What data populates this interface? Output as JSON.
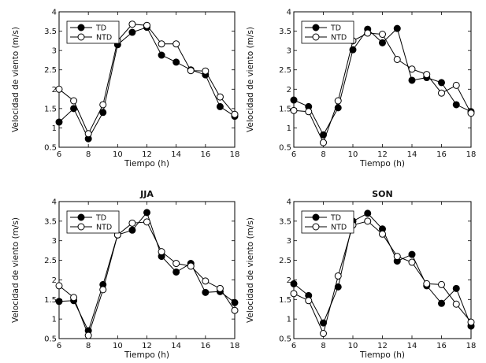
{
  "chart_data": [
    {
      "type": "line",
      "title": "",
      "xlabel": "Tiempo (h)",
      "ylabel": "Velocidad de viento (m/s)",
      "xlim": [
        6,
        18
      ],
      "ylim": [
        0.5,
        4
      ],
      "xticks": [
        6,
        8,
        10,
        12,
        14,
        16,
        18
      ],
      "yticks": [
        0.5,
        1,
        1.5,
        2,
        2.5,
        3,
        3.5,
        4
      ],
      "x": [
        6,
        7,
        8,
        9,
        10,
        11,
        12,
        13,
        14,
        15,
        16,
        17,
        18
      ],
      "series": [
        {
          "name": "TD",
          "marker": "filled",
          "values": [
            1.15,
            1.5,
            0.72,
            1.4,
            3.15,
            3.47,
            3.6,
            2.88,
            2.7,
            2.5,
            2.37,
            1.55,
            1.3
          ]
        },
        {
          "name": "NTD",
          "marker": "open",
          "values": [
            2.0,
            1.7,
            0.85,
            1.6,
            3.25,
            3.68,
            3.65,
            3.17,
            3.17,
            2.48,
            2.47,
            1.8,
            1.35
          ]
        }
      ]
    },
    {
      "type": "line",
      "title": "",
      "xlabel": "Tiempo (h)",
      "ylabel": "Velocidad de viento (m/s)",
      "xlim": [
        6,
        18
      ],
      "ylim": [
        0.5,
        4
      ],
      "xticks": [
        6,
        8,
        10,
        12,
        14,
        16,
        18
      ],
      "yticks": [
        0.5,
        1,
        1.5,
        2,
        2.5,
        3,
        3.5,
        4
      ],
      "x": [
        6,
        7,
        8,
        9,
        10,
        11,
        12,
        13,
        14,
        15,
        16,
        17,
        18
      ],
      "series": [
        {
          "name": "TD",
          "marker": "filled",
          "values": [
            1.72,
            1.55,
            0.82,
            1.52,
            3.02,
            3.55,
            3.2,
            3.57,
            2.23,
            2.3,
            2.17,
            1.6,
            1.42
          ]
        },
        {
          "name": "NTD",
          "marker": "open",
          "values": [
            1.45,
            1.42,
            0.62,
            1.7,
            3.25,
            3.45,
            3.42,
            2.77,
            2.52,
            2.38,
            1.9,
            2.1,
            1.38
          ]
        }
      ]
    },
    {
      "type": "line",
      "title": "JJA",
      "xlabel": "Tiempo (h)",
      "ylabel": "Velocidad de viento (m/s)",
      "xlim": [
        6,
        18
      ],
      "ylim": [
        0.5,
        4
      ],
      "xticks": [
        6,
        8,
        10,
        12,
        14,
        16,
        18
      ],
      "yticks": [
        0.5,
        1,
        1.5,
        2,
        2.5,
        3,
        3.5,
        4
      ],
      "x": [
        6,
        7,
        8,
        9,
        10,
        11,
        12,
        13,
        14,
        15,
        16,
        17,
        18
      ],
      "series": [
        {
          "name": "TD",
          "marker": "filled",
          "values": [
            1.45,
            1.47,
            0.7,
            1.88,
            3.15,
            3.27,
            3.72,
            2.6,
            2.2,
            2.42,
            1.68,
            1.7,
            1.42
          ]
        },
        {
          "name": "NTD",
          "marker": "open",
          "values": [
            1.85,
            1.55,
            0.58,
            1.75,
            3.15,
            3.45,
            3.48,
            2.72,
            2.42,
            2.35,
            1.97,
            1.78,
            1.22
          ]
        }
      ]
    },
    {
      "type": "line",
      "title": "SON",
      "xlabel": "Tiempo (h)",
      "ylabel": "Velocidad de viento (m/s)",
      "xlim": [
        6,
        18
      ],
      "ylim": [
        0.5,
        4
      ],
      "xticks": [
        6,
        8,
        10,
        12,
        14,
        16,
        18
      ],
      "yticks": [
        0.5,
        1,
        1.5,
        2,
        2.5,
        3,
        3.5,
        4
      ],
      "x": [
        6,
        7,
        8,
        9,
        10,
        11,
        12,
        13,
        14,
        15,
        16,
        17,
        18
      ],
      "series": [
        {
          "name": "TD",
          "marker": "filled",
          "values": [
            1.9,
            1.6,
            0.9,
            1.82,
            3.5,
            3.7,
            3.3,
            2.48,
            2.65,
            1.85,
            1.4,
            1.78,
            0.82
          ]
        },
        {
          "name": "NTD",
          "marker": "open",
          "values": [
            1.65,
            1.47,
            0.63,
            2.1,
            3.4,
            3.5,
            3.17,
            2.6,
            2.45,
            1.9,
            1.88,
            1.38,
            0.92
          ]
        }
      ]
    }
  ]
}
